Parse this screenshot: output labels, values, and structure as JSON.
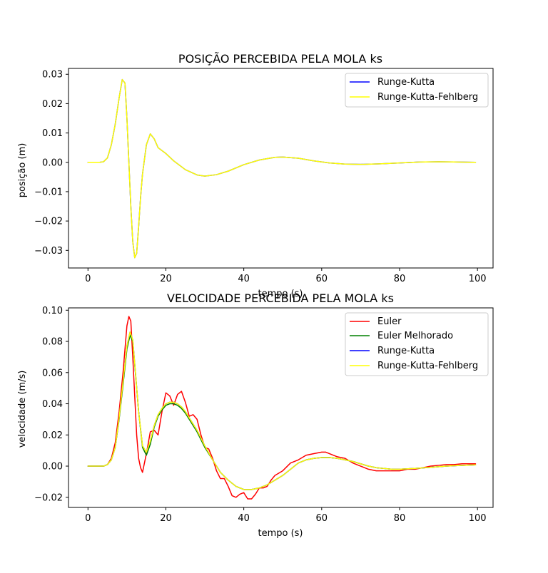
{
  "chart_data": [
    {
      "type": "line",
      "title": "POSIÇÃO PERCEBIDA PELA MOLA ks",
      "xlabel": "tempo (s)",
      "ylabel": "posição (m)",
      "xlim": [
        -5,
        104
      ],
      "ylim": [
        -0.036,
        0.032
      ],
      "xticks": [
        0,
        20,
        40,
        60,
        80,
        100
      ],
      "xtick_labels": [
        "0",
        "20",
        "40",
        "60",
        "80",
        "100"
      ],
      "yticks": [
        0.03,
        0.02,
        0.01,
        0.0,
        -0.01,
        -0.02,
        -0.03
      ],
      "ytick_labels": [
        "0.03",
        "0.02",
        "0.01",
        "0.00",
        "−0.01",
        "−0.02",
        "−0.03"
      ],
      "legend_position": "top-right",
      "grid": false,
      "series": [
        {
          "name": "Runge-Kutta",
          "color": "#0000ff",
          "x": [
            0,
            3,
            4,
            5,
            6,
            7,
            8,
            8.8,
            9.5,
            10,
            10.5,
            11,
            11.5,
            12,
            12.5,
            13,
            13.5,
            14,
            15,
            16,
            17,
            18,
            19,
            20,
            22,
            25,
            28,
            30,
            33,
            36,
            40,
            44,
            48,
            50,
            54,
            58,
            62,
            66,
            70,
            75,
            80,
            85,
            90,
            95,
            99.5
          ],
          "y": [
            0,
            0,
            0.0002,
            0.0015,
            0.006,
            0.013,
            0.022,
            0.0282,
            0.027,
            0.015,
            0.0,
            -0.015,
            -0.027,
            -0.0325,
            -0.031,
            -0.022,
            -0.012,
            -0.004,
            0.006,
            0.0097,
            0.008,
            0.005,
            0.004,
            0.003,
            0.0005,
            -0.0025,
            -0.0043,
            -0.0047,
            -0.0042,
            -0.003,
            -0.0008,
            0.0008,
            0.0017,
            0.0018,
            0.0014,
            0.0005,
            -0.0002,
            -0.0006,
            -0.0007,
            -0.0005,
            -0.0002,
            0.0001,
            0.0002,
            0.0001,
            0.0
          ]
        },
        {
          "name": "Runge-Kutta-Fehlberg",
          "color": "#ffff00",
          "x": [
            0,
            3,
            4,
            5,
            6,
            7,
            8,
            8.8,
            9.5,
            10,
            10.5,
            11,
            11.5,
            12,
            12.5,
            13,
            13.5,
            14,
            15,
            16,
            17,
            18,
            19,
            20,
            22,
            25,
            28,
            30,
            33,
            36,
            40,
            44,
            48,
            50,
            54,
            58,
            62,
            66,
            70,
            75,
            80,
            85,
            90,
            95,
            99.5
          ],
          "y": [
            0,
            0,
            0.0002,
            0.0015,
            0.006,
            0.013,
            0.022,
            0.0282,
            0.027,
            0.015,
            0.0,
            -0.015,
            -0.027,
            -0.0325,
            -0.031,
            -0.022,
            -0.012,
            -0.004,
            0.006,
            0.0097,
            0.008,
            0.005,
            0.004,
            0.003,
            0.0005,
            -0.0025,
            -0.0043,
            -0.0047,
            -0.0042,
            -0.003,
            -0.0008,
            0.0008,
            0.0017,
            0.0018,
            0.0014,
            0.0005,
            -0.0002,
            -0.0006,
            -0.0007,
            -0.0005,
            -0.0002,
            0.0001,
            0.0002,
            0.0001,
            0.0
          ]
        }
      ]
    },
    {
      "type": "line",
      "title": "VELOCIDADE PERCEBIDA PELA MOLA ks",
      "xlabel": "tempo (s)",
      "ylabel": "velocidade (m/s)",
      "xlim": [
        -5,
        104
      ],
      "ylim": [
        -0.0265,
        0.1015
      ],
      "xticks": [
        0,
        20,
        40,
        60,
        80,
        100
      ],
      "xtick_labels": [
        "0",
        "20",
        "40",
        "60",
        "80",
        "100"
      ],
      "yticks": [
        0.1,
        0.08,
        0.06,
        0.04,
        0.02,
        0.0,
        -0.02
      ],
      "ytick_labels": [
        "0.10",
        "0.08",
        "0.06",
        "0.04",
        "0.02",
        "0.00",
        "−0.02"
      ],
      "legend_position": "top-right",
      "grid": false,
      "series": [
        {
          "name": "Euler",
          "color": "#ff0000",
          "x": [
            0,
            4,
            5,
            6,
            7,
            8,
            9,
            10,
            10.5,
            11,
            11.5,
            12,
            12.5,
            13,
            13.5,
            14,
            15,
            16,
            17,
            18,
            19,
            20,
            21,
            22,
            23,
            24,
            25,
            26,
            27,
            28,
            29,
            30,
            31,
            32,
            33,
            34,
            35,
            36,
            37,
            38,
            39,
            40,
            41,
            42,
            43,
            44,
            45,
            46,
            47,
            48,
            50,
            52,
            54,
            56,
            58,
            60,
            61,
            62,
            64,
            66,
            68,
            70,
            72,
            74,
            76,
            78,
            80,
            82,
            84,
            86,
            88,
            90,
            92,
            94,
            96,
            99.5
          ],
          "y": [
            0,
            0,
            0.001,
            0.005,
            0.015,
            0.035,
            0.06,
            0.09,
            0.096,
            0.093,
            0.07,
            0.045,
            0.02,
            0.005,
            -0.001,
            -0.004,
            0.008,
            0.022,
            0.023,
            0.02,
            0.035,
            0.047,
            0.045,
            0.039,
            0.046,
            0.048,
            0.041,
            0.032,
            0.033,
            0.03,
            0.02,
            0.012,
            0.011,
            0.005,
            -0.003,
            -0.008,
            -0.008,
            -0.013,
            -0.019,
            -0.02,
            -0.018,
            -0.017,
            -0.021,
            -0.021,
            -0.018,
            -0.014,
            -0.014,
            -0.013,
            -0.009,
            -0.006,
            -0.003,
            0.002,
            0.004,
            0.007,
            0.008,
            0.009,
            0.009,
            0.008,
            0.006,
            0.005,
            0.002,
            0.0,
            -0.002,
            -0.003,
            -0.003,
            -0.003,
            -0.003,
            -0.002,
            -0.002,
            -0.001,
            0.0,
            0.0005,
            0.001,
            0.001,
            0.0015,
            0.0015
          ]
        },
        {
          "name": "Euler Melhorado",
          "color": "#008000",
          "x": [
            0,
            4,
            5,
            6,
            7,
            8,
            9,
            10,
            10.8,
            11.5,
            12,
            13,
            14,
            15,
            16,
            17,
            18,
            19,
            20,
            21,
            22,
            23,
            24,
            25,
            26,
            28,
            30,
            32,
            34,
            36,
            38,
            40,
            42,
            44,
            46,
            48,
            50,
            52,
            54,
            56,
            58,
            60,
            62,
            64,
            66,
            68,
            70,
            72,
            74,
            76,
            78,
            80,
            84,
            88,
            92,
            96,
            99.5
          ],
          "y": [
            0,
            0,
            0.001,
            0.004,
            0.012,
            0.03,
            0.052,
            0.075,
            0.084,
            0.08,
            0.065,
            0.035,
            0.012,
            0.007,
            0.014,
            0.025,
            0.032,
            0.036,
            0.039,
            0.04,
            0.04,
            0.039,
            0.037,
            0.034,
            0.03,
            0.022,
            0.012,
            0.004,
            -0.004,
            -0.009,
            -0.013,
            -0.015,
            -0.015,
            -0.014,
            -0.012,
            -0.009,
            -0.006,
            -0.002,
            0.002,
            0.004,
            0.005,
            0.0055,
            0.0055,
            0.005,
            0.004,
            0.003,
            0.0015,
            0.0,
            -0.001,
            -0.0015,
            -0.002,
            -0.002,
            -0.0015,
            -0.0008,
            0.0,
            0.0005,
            0.0008
          ]
        },
        {
          "name": "Runge-Kutta",
          "color": "#0000ff",
          "x": [
            0,
            4,
            5,
            6,
            7,
            8,
            9,
            10,
            10.8,
            11.5,
            12,
            13,
            14,
            15,
            16,
            17,
            18,
            19,
            20,
            21,
            22,
            23,
            24,
            25,
            26,
            28,
            30,
            32,
            34,
            36,
            38,
            40,
            42,
            44,
            46,
            48,
            50,
            52,
            54,
            56,
            58,
            60,
            62,
            64,
            66,
            68,
            70,
            72,
            74,
            76,
            78,
            80,
            84,
            88,
            92,
            96,
            99.5
          ],
          "y": [
            0,
            0,
            0.001,
            0.004,
            0.012,
            0.031,
            0.054,
            0.077,
            0.086,
            0.081,
            0.066,
            0.035,
            0.013,
            0.009,
            0.016,
            0.026,
            0.033,
            0.037,
            0.04,
            0.041,
            0.041,
            0.04,
            0.038,
            0.035,
            0.031,
            0.023,
            0.013,
            0.004,
            -0.004,
            -0.009,
            -0.013,
            -0.015,
            -0.015,
            -0.014,
            -0.012,
            -0.009,
            -0.006,
            -0.002,
            0.002,
            0.004,
            0.005,
            0.0055,
            0.0055,
            0.005,
            0.004,
            0.003,
            0.0015,
            0.0,
            -0.001,
            -0.0015,
            -0.002,
            -0.002,
            -0.0015,
            -0.0008,
            0.0,
            0.0005,
            0.0008
          ]
        },
        {
          "name": "Runge-Kutta-Fehlberg",
          "color": "#ffff00",
          "x": [
            0,
            4,
            5,
            6,
            7,
            8,
            9,
            10,
            10.8,
            11.5,
            12,
            13,
            14,
            15,
            16,
            17,
            18,
            19,
            20,
            21,
            22,
            23,
            24,
            25,
            26,
            28,
            30,
            32,
            34,
            36,
            38,
            40,
            42,
            44,
            46,
            48,
            50,
            52,
            54,
            56,
            58,
            60,
            62,
            64,
            66,
            68,
            70,
            72,
            74,
            76,
            78,
            80,
            84,
            88,
            92,
            96,
            99.5
          ],
          "y": [
            0,
            0,
            0.001,
            0.004,
            0.012,
            0.031,
            0.054,
            0.077,
            0.086,
            0.081,
            0.066,
            0.035,
            0.013,
            0.009,
            0.016,
            0.026,
            0.033,
            0.037,
            0.04,
            0.041,
            0.041,
            0.04,
            0.038,
            0.035,
            0.031,
            0.023,
            0.013,
            0.004,
            -0.004,
            -0.009,
            -0.013,
            -0.015,
            -0.015,
            -0.014,
            -0.012,
            -0.009,
            -0.006,
            -0.002,
            0.002,
            0.004,
            0.005,
            0.0055,
            0.0055,
            0.005,
            0.004,
            0.003,
            0.0015,
            0.0,
            -0.001,
            -0.0015,
            -0.002,
            -0.002,
            -0.0015,
            -0.0008,
            0.0,
            0.0005,
            0.0008
          ]
        }
      ]
    }
  ]
}
